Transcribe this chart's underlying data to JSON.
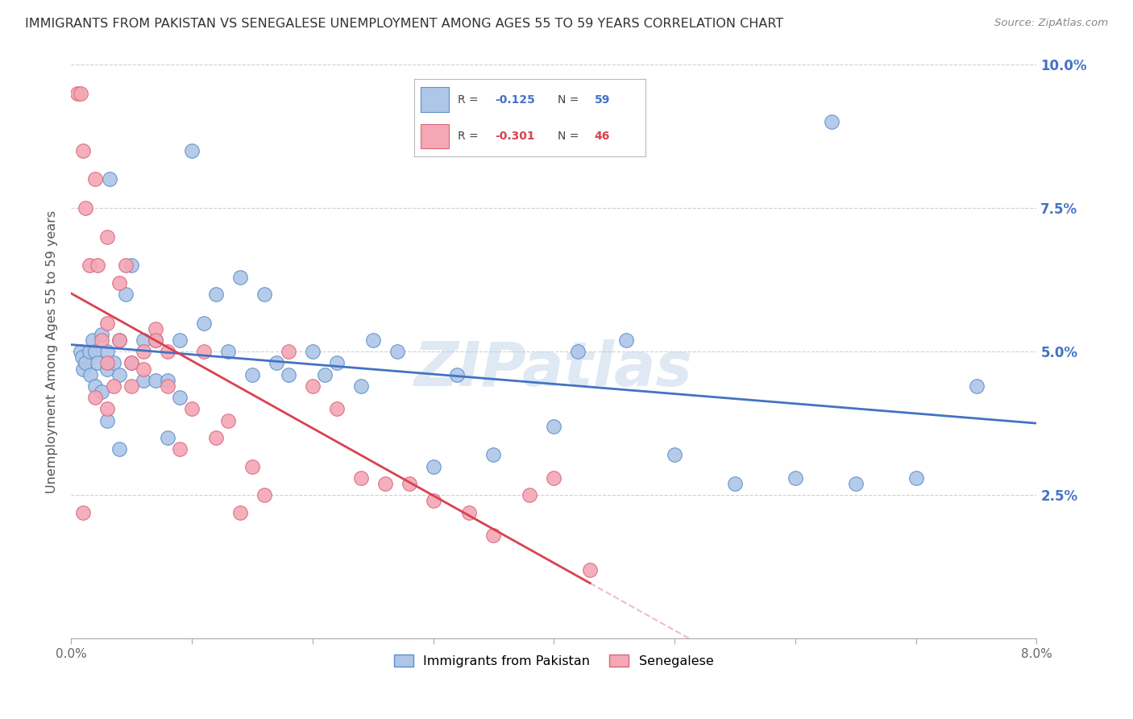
{
  "title": "IMMIGRANTS FROM PAKISTAN VS SENEGALESE UNEMPLOYMENT AMONG AGES 55 TO 59 YEARS CORRELATION CHART",
  "source": "Source: ZipAtlas.com",
  "ylabel": "Unemployment Among Ages 55 to 59 years",
  "xlim": [
    0.0,
    0.08
  ],
  "ylim": [
    0.0,
    0.1
  ],
  "yticks": [
    0.0,
    0.025,
    0.05,
    0.075,
    0.1
  ],
  "ytick_labels": [
    "",
    "2.5%",
    "5.0%",
    "7.5%",
    "10.0%"
  ],
  "xticks": [
    0.0,
    0.01,
    0.02,
    0.03,
    0.04,
    0.05,
    0.06,
    0.07,
    0.08
  ],
  "xtick_labels": [
    "0.0%",
    "",
    "",
    "",
    "",
    "",
    "",
    "",
    "8.0%"
  ],
  "blue_color": "#aec6e8",
  "pink_color": "#f4a7b5",
  "blue_edge_color": "#5b8fc9",
  "pink_edge_color": "#d9667a",
  "blue_line_color": "#4472c4",
  "pink_line_color": "#d9414f",
  "legend_label_blue": "Immigrants from Pakistan",
  "legend_label_pink": "Senegalese",
  "blue_x": [
    0.0008,
    0.0009,
    0.001,
    0.0012,
    0.0015,
    0.0016,
    0.0018,
    0.002,
    0.002,
    0.0022,
    0.0025,
    0.0025,
    0.003,
    0.003,
    0.003,
    0.0032,
    0.0035,
    0.004,
    0.004,
    0.004,
    0.0045,
    0.005,
    0.005,
    0.006,
    0.006,
    0.007,
    0.007,
    0.008,
    0.008,
    0.009,
    0.009,
    0.01,
    0.011,
    0.012,
    0.013,
    0.014,
    0.015,
    0.016,
    0.017,
    0.018,
    0.02,
    0.021,
    0.022,
    0.024,
    0.025,
    0.027,
    0.03,
    0.032,
    0.035,
    0.04,
    0.042,
    0.046,
    0.05,
    0.055,
    0.06,
    0.063,
    0.065,
    0.07,
    0.075
  ],
  "blue_y": [
    0.05,
    0.049,
    0.047,
    0.048,
    0.05,
    0.046,
    0.052,
    0.05,
    0.044,
    0.048,
    0.053,
    0.043,
    0.05,
    0.047,
    0.038,
    0.08,
    0.048,
    0.052,
    0.046,
    0.033,
    0.06,
    0.065,
    0.048,
    0.052,
    0.045,
    0.052,
    0.045,
    0.045,
    0.035,
    0.052,
    0.042,
    0.085,
    0.055,
    0.06,
    0.05,
    0.063,
    0.046,
    0.06,
    0.048,
    0.046,
    0.05,
    0.046,
    0.048,
    0.044,
    0.052,
    0.05,
    0.03,
    0.046,
    0.032,
    0.037,
    0.05,
    0.052,
    0.032,
    0.027,
    0.028,
    0.09,
    0.027,
    0.028,
    0.044
  ],
  "pink_x": [
    0.0005,
    0.0008,
    0.001,
    0.001,
    0.0012,
    0.0015,
    0.002,
    0.002,
    0.0022,
    0.0025,
    0.003,
    0.003,
    0.003,
    0.003,
    0.0035,
    0.004,
    0.004,
    0.0045,
    0.005,
    0.005,
    0.006,
    0.006,
    0.007,
    0.007,
    0.008,
    0.008,
    0.009,
    0.01,
    0.011,
    0.012,
    0.013,
    0.014,
    0.015,
    0.016,
    0.018,
    0.02,
    0.022,
    0.024,
    0.026,
    0.028,
    0.03,
    0.033,
    0.035,
    0.038,
    0.04,
    0.043
  ],
  "pink_y": [
    0.095,
    0.095,
    0.085,
    0.022,
    0.075,
    0.065,
    0.08,
    0.042,
    0.065,
    0.052,
    0.07,
    0.055,
    0.048,
    0.04,
    0.044,
    0.062,
    0.052,
    0.065,
    0.048,
    0.044,
    0.05,
    0.047,
    0.054,
    0.052,
    0.05,
    0.044,
    0.033,
    0.04,
    0.05,
    0.035,
    0.038,
    0.022,
    0.03,
    0.025,
    0.05,
    0.044,
    0.04,
    0.028,
    0.027,
    0.027,
    0.024,
    0.022,
    0.018,
    0.025,
    0.028,
    0.012
  ],
  "watermark": "ZIPatlas",
  "background_color": "#ffffff",
  "grid_color": "#d0d0d0",
  "pink_line_end_solid": 0.043,
  "pink_line_end_dash": 0.08
}
